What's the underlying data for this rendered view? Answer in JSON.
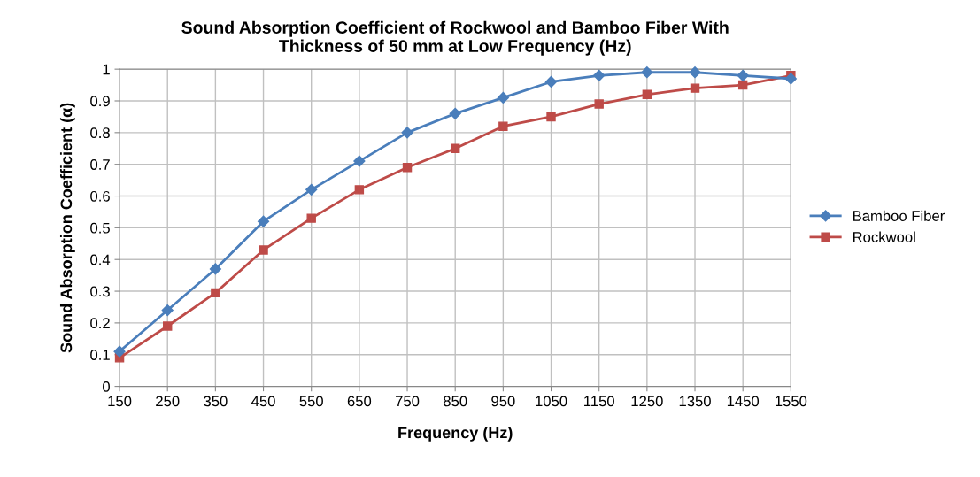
{
  "chart_data": {
    "type": "line",
    "title": "Sound Absorption Coefficient of Rockwool and Bamboo Fiber With\nThickness of 50 mm at Low Frequency (Hz)",
    "xlabel": "Frequency (Hz)",
    "ylabel": "Sound Absorption Coefficient (α)",
    "categories": [
      "150",
      "250",
      "350",
      "450",
      "550",
      "650",
      "750",
      "850",
      "950",
      "1050",
      "1150",
      "1250",
      "1350",
      "1450",
      "1550"
    ],
    "series": [
      {
        "name": "Bamboo Fiber",
        "color": "#4a7ebb",
        "marker": "diamond",
        "values": [
          0.11,
          0.24,
          0.37,
          0.52,
          0.62,
          0.71,
          0.8,
          0.86,
          0.91,
          0.96,
          0.98,
          0.99,
          0.99,
          0.98,
          0.97
        ]
      },
      {
        "name": "Rockwool",
        "color": "#be4b48",
        "marker": "square",
        "values": [
          0.09,
          0.19,
          0.295,
          0.43,
          0.53,
          0.62,
          0.69,
          0.75,
          0.82,
          0.85,
          0.89,
          0.92,
          0.94,
          0.95,
          0.98
        ]
      }
    ],
    "ylim": [
      0,
      1
    ],
    "yticks": [
      0,
      0.1,
      0.2,
      0.3,
      0.4,
      0.5,
      0.6,
      0.7,
      0.8,
      0.9,
      1
    ],
    "grid": true,
    "legend": "right",
    "line_style": "solid"
  }
}
